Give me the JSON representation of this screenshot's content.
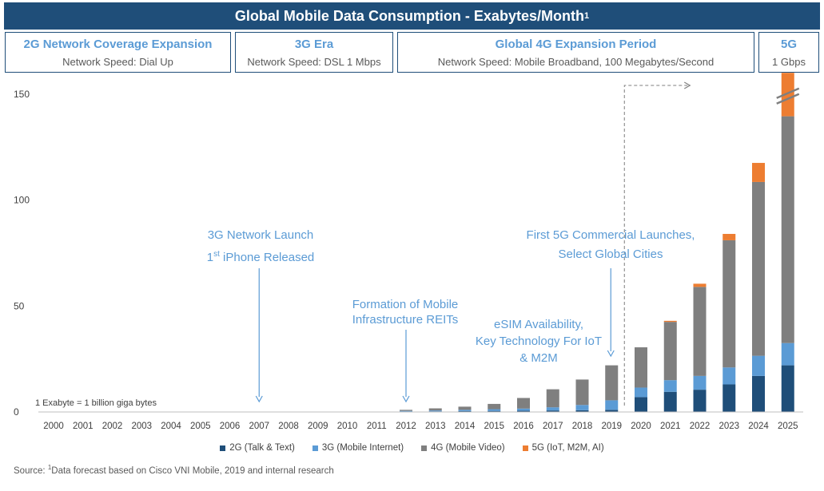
{
  "title": "Global Mobile Data Consumption - Exabytes/Month",
  "title_sup": "1",
  "eras": [
    {
      "name": "2G Network Coverage Expansion",
      "speed": "Network Speed: Dial Up"
    },
    {
      "name": "3G Era",
      "speed": "Network Speed: DSL 1 Mbps"
    },
    {
      "name": "Global 4G Expansion Period",
      "speed": "Network Speed: Mobile Broadband, 100 Megabytes/Second"
    },
    {
      "name": "5G",
      "speed": "1 Gbps"
    }
  ],
  "annotations": {
    "launch_3g": "3G Network Launch",
    "iphone_sup": "st",
    "iphone_prefix": "1",
    "iphone_rest": " iPhone Released",
    "reits_1": "Formation of Mobile",
    "reits_2": "Infrastructure REITs",
    "esim_1": "eSIM Availability,",
    "esim_2": "Key Technology For IoT",
    "esim_3": "& M2M",
    "g5_1": "First 5G Commercial Launches,",
    "g5_2": "Select Global Cities"
  },
  "exabyte_note": "1 Exabyte = 1 billion giga bytes",
  "source": {
    "prefix": "Source: ",
    "sup": "1",
    "text": "Data forecast based on Cisco VNI Mobile, 2019 and internal research"
  },
  "colors": {
    "title_bg": "#1f4e79",
    "2g": "#1f4e79",
    "3g": "#5b9bd5",
    "4g": "#7f7f7f",
    "5g": "#ed7d31",
    "annotation": "#5b9bd5"
  },
  "chart_data": {
    "type": "bar",
    "stacked": true,
    "title": "Global Mobile Data Consumption - Exabytes/Month",
    "categories": [
      "2000",
      "2001",
      "2002",
      "2003",
      "2004",
      "2005",
      "2006",
      "2007",
      "2008",
      "2009",
      "2010",
      "2011",
      "2012",
      "2013",
      "2014",
      "2015",
      "2016",
      "2017",
      "2018",
      "2019",
      "2020",
      "2021",
      "2022",
      "2023",
      "2024",
      "2025"
    ],
    "series": [
      {
        "name": "2G (Talk & Text)",
        "color": "#1f4e79",
        "values": [
          0,
          0,
          0,
          0,
          0,
          0,
          0,
          0,
          0,
          0,
          0,
          0,
          0.2,
          0.3,
          0.4,
          0.5,
          0.6,
          0.7,
          0.8,
          1,
          7,
          9.5,
          10.5,
          13,
          17,
          22
        ]
      },
      {
        "name": "3G (Mobile Internet)",
        "color": "#5b9bd5",
        "values": [
          0,
          0,
          0,
          0,
          0,
          0,
          0,
          0,
          0,
          0,
          0,
          0,
          0.3,
          0.4,
          0.6,
          0.8,
          1,
          1.5,
          2.5,
          4.5,
          4.5,
          5.5,
          6.5,
          8,
          9.5,
          10.5
        ]
      },
      {
        "name": "4G (Mobile Video)",
        "color": "#7f7f7f",
        "values": [
          0,
          0,
          0,
          0,
          0,
          0,
          0,
          0,
          0,
          0,
          0,
          0,
          0.5,
          1,
          1.5,
          2.5,
          5,
          8.5,
          12,
          16.5,
          19,
          27.5,
          42,
          60,
          82,
          107
        ]
      },
      {
        "name": "5G (IoT, M2M, AI)",
        "color": "#ed7d31",
        "values": [
          0,
          0,
          0,
          0,
          0,
          0,
          0,
          0,
          0,
          0,
          0,
          0,
          0,
          0,
          0,
          0,
          0,
          0,
          0,
          0,
          0,
          0.5,
          1.5,
          3,
          9,
          22
        ]
      }
    ],
    "ylim": [
      0,
      150
    ],
    "yticks": [
      0,
      50,
      100,
      150
    ],
    "axis_break_on": "2025",
    "legend_position": "bottom",
    "grid": false
  }
}
